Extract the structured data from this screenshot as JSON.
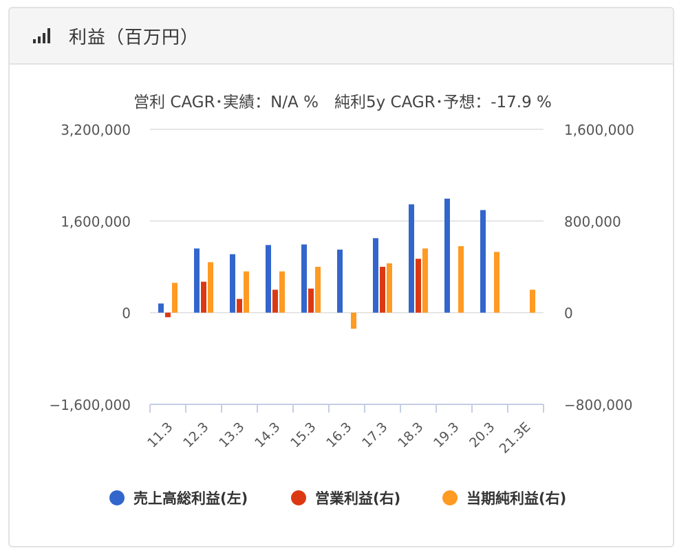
{
  "card": {
    "title": "利益（百万円）",
    "icon": "bar-chart-signal-icon"
  },
  "chart_data": {
    "type": "bar",
    "subtitle": "営利 CAGR･実績：N/A %　純利5y CAGR･予想：-17.9 %",
    "categories": [
      "11.3",
      "12.3",
      "13.3",
      "14.3",
      "15.3",
      "16.3",
      "17.3",
      "18.3",
      "19.3",
      "20.3",
      "21.3E"
    ],
    "left_axis": {
      "min": -1600000,
      "max": 3200000,
      "ticks": [
        3200000,
        1600000,
        0,
        -1600000
      ],
      "tick_labels": [
        "3,200,000",
        "1,600,000",
        "0",
        "−1,600,000"
      ]
    },
    "right_axis": {
      "min": -800000,
      "max": 1600000,
      "ticks": [
        1600000,
        800000,
        0,
        -800000
      ],
      "tick_labels": [
        "1,600,000",
        "800,000",
        "0",
        "−800,000"
      ]
    },
    "series": [
      {
        "name": "売上高総利益(左)",
        "axis": "left",
        "color": "#3366cc",
        "values": [
          160000,
          1120000,
          1020000,
          1180000,
          1190000,
          1100000,
          1300000,
          1890000,
          1990000,
          1790000,
          null
        ]
      },
      {
        "name": "営業利益(右)",
        "axis": "right",
        "color": "#dc3912",
        "values": [
          -40000,
          270000,
          120000,
          200000,
          210000,
          null,
          400000,
          470000,
          null,
          null,
          null
        ]
      },
      {
        "name": "当期純利益(右)",
        "axis": "right",
        "color": "#ff9a22",
        "values": [
          260000,
          440000,
          360000,
          360000,
          400000,
          -140000,
          430000,
          560000,
          580000,
          530000,
          200000
        ]
      }
    ],
    "grid": true,
    "legend_position": "bottom"
  }
}
